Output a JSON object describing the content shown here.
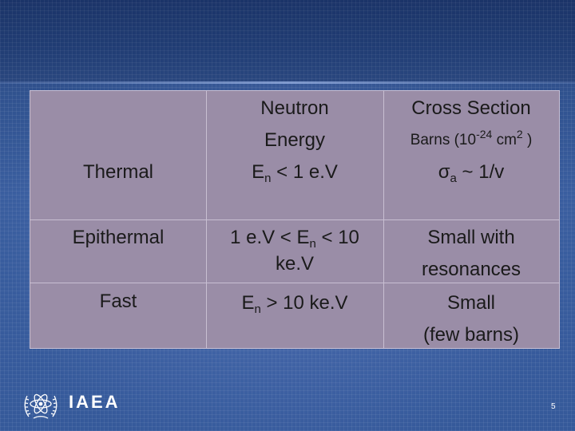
{
  "table": {
    "header": {
      "energy_line1": "Neutron",
      "energy_line2": "Energy",
      "cross_section_title": "Cross Section",
      "barns_prefix": "Barns (10",
      "barns_exp": "-24",
      "barns_mid": " cm",
      "barns_sq": "2",
      "barns_suffix": " )"
    },
    "rows": [
      {
        "name": "Thermal",
        "energy_sym": "E",
        "energy_sub": "n",
        "energy_rest": " < 1 e.V",
        "cs_sym": "σ",
        "cs_sub": "a",
        "cs_rest": " ~ 1/v"
      },
      {
        "name": "Epithermal",
        "energy_pre": "1 e.V < E",
        "energy_sub": "n",
        "energy_rest": " < 10",
        "energy_line2": "ke.V",
        "cs_line1": "Small with",
        "cs_line2": "resonances"
      },
      {
        "name": "Fast",
        "energy_sym": "E",
        "energy_sub": "n",
        "energy_rest": " > 10 ke.V",
        "cs_line1": "Small",
        "cs_line2": "(few barns)"
      }
    ]
  },
  "footer": {
    "logo_text": "IAEA",
    "page_number": "5"
  },
  "colors": {
    "background": "#2f4f8f",
    "table_fill": "#9a8da7",
    "grid_line": "#c8bfd2"
  }
}
